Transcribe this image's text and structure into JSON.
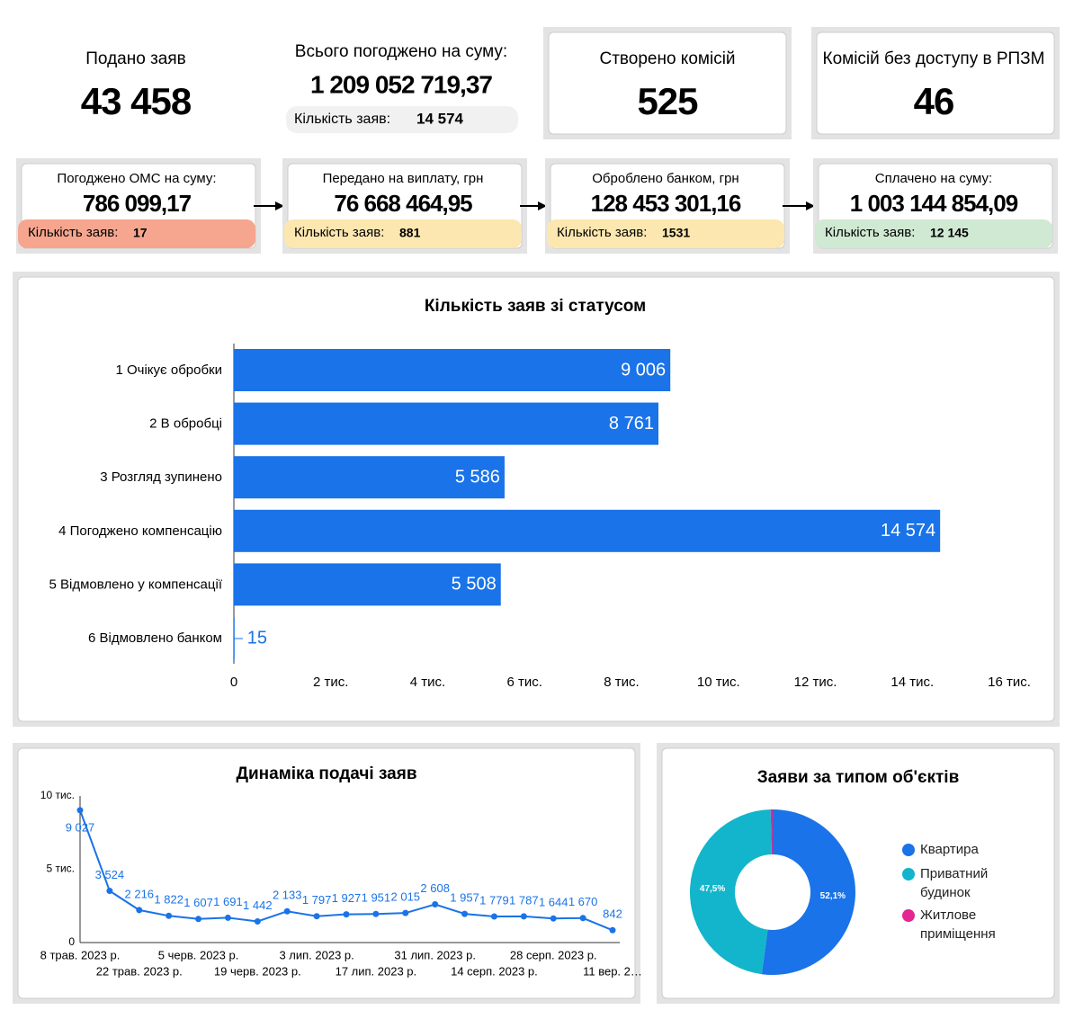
{
  "summary": [
    {
      "label": "Подано заяв",
      "value": "43 458"
    },
    {
      "label": "Всього погоджено на суму:",
      "value": "1 209 052 719,37",
      "count_label": "Кількість заяв:",
      "count": "14 574"
    },
    {
      "label": "Створено комісій",
      "value": "525"
    },
    {
      "label": "Комісій без доступу в РПЗМ",
      "value": "46"
    }
  ],
  "flow": [
    {
      "label": "Погоджено ОМС на суму:",
      "value": "786 099,17",
      "count_label": "Кількість заяв:",
      "count": "17",
      "color": "#f6a68f"
    },
    {
      "label": "Передано на виплату, грн",
      "value": "76 668 464,95",
      "count_label": "Кількість заяв:",
      "count": "881",
      "color": "#fde7b0"
    },
    {
      "label": "Оброблено банком, грн",
      "value": "128 453 301,16",
      "count_label": "Кількість заяв:",
      "count": "1531",
      "color": "#fde7b0"
    },
    {
      "label": "Сплачено на суму:",
      "value": "1 003 144 854,09",
      "count_label": "Кількість заяв:",
      "count": "12 145",
      "color": "#cfe9d2"
    }
  ],
  "chart_data": [
    {
      "type": "bar",
      "orientation": "horizontal",
      "title": "Кількість заяв зі статусом",
      "categories": [
        "1 Очікує обробки",
        "2 В обробці",
        "3 Розгляд зупинено",
        "4 Погоджено компенсацію",
        "5 Відмовлено у компенсації",
        "6 Відмовлено банком"
      ],
      "values": [
        9006,
        8761,
        5586,
        14574,
        5508,
        15
      ],
      "value_labels": [
        "9 006",
        "8 761",
        "5 586",
        "14 574",
        "5 508",
        "15"
      ],
      "color": "#1a73e8",
      "xlim": [
        0,
        16000
      ],
      "xticks": [
        0,
        {
          "value": 2000,
          "label": "2 тис."
        },
        {
          "value": 4000,
          "label": "4 тис."
        },
        {
          "value": 6000,
          "label": "6 тис."
        },
        {
          "value": 8000,
          "label": "8 тис."
        },
        {
          "value": 10000,
          "label": "10 тис."
        },
        {
          "value": 12000,
          "label": "12 тис."
        },
        {
          "value": 14000,
          "label": "14 тис."
        },
        {
          "value": 16000,
          "label": "16 тис."
        }
      ]
    },
    {
      "type": "line",
      "title": "Динаміка подачі заяв",
      "categories": [
        "8 трав. 2023 р.",
        null,
        "22 трав. 2023 р.",
        null,
        "5 черв. 2023 р.",
        null,
        "19 черв. 2023 р.",
        null,
        "3 лип. 2023 р.",
        null,
        "17 лип. 2023 р.",
        null,
        "31 лип. 2023 р.",
        null,
        "14 серп. 2023 р.",
        null,
        "28 серп. 2023 р.",
        null,
        "11 вер. 2…"
      ],
      "values": [
        9027,
        3524,
        2216,
        1822,
        1607,
        1691,
        1442,
        2133,
        1797,
        1927,
        1951,
        2015,
        2608,
        1957,
        1779,
        1787,
        1644,
        1670,
        842
      ],
      "value_labels": [
        "9 027",
        "3 524",
        "2 216",
        "1 822",
        "1 607",
        "1 691",
        "1 442",
        "2 133",
        "1 797",
        "1 927",
        "1 951",
        "2 015",
        "2 608",
        "1 957",
        "1 779",
        "1 787",
        "1 644",
        "1 670",
        "842"
      ],
      "color": "#1a73e8",
      "ylim": [
        0,
        10000
      ],
      "yticks": [
        0,
        {
          "value": 5000,
          "label": "5 тис."
        },
        {
          "value": 10000,
          "label": "10 тис."
        }
      ]
    },
    {
      "type": "pie",
      "donut": true,
      "title": "Заяви за типом об'єктів",
      "categories": [
        "Квартира",
        "Приватний будинок",
        "Житлове приміщення"
      ],
      "values": [
        52.1,
        47.5,
        0.4
      ],
      "value_labels": [
        "52,1%",
        "47,5%",
        null
      ],
      "colors": [
        "#1a73e8",
        "#12b5cb",
        "#e52592"
      ],
      "legend": "right"
    }
  ]
}
